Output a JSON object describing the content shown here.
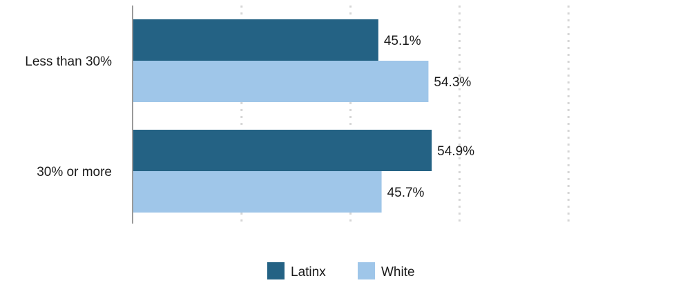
{
  "chart_data": {
    "type": "bar",
    "orientation": "horizontal",
    "categories": [
      "Less than 30%",
      "30% or more"
    ],
    "series": [
      {
        "name": "Latinx",
        "color": "#246284",
        "values": [
          45.1,
          54.9
        ]
      },
      {
        "name": "White",
        "color": "#9fc6e9",
        "values": [
          54.3,
          45.7
        ]
      }
    ],
    "value_labels": [
      [
        "45.1%",
        "54.9%"
      ],
      [
        "54.3%",
        "45.7%"
      ]
    ],
    "xlim": [
      0,
      100
    ],
    "x_gridlines": [
      0,
      20,
      40,
      60,
      80
    ],
    "x_tick_labels_visible": false,
    "grid": true,
    "legend_position": "bottom"
  }
}
